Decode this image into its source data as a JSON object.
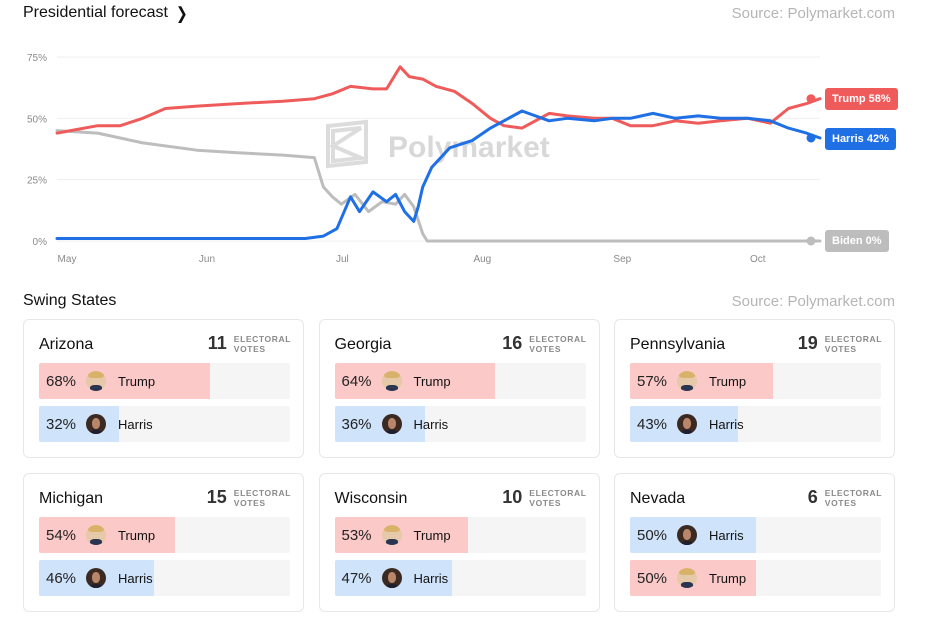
{
  "header": {
    "title": "Presidential forecast",
    "chevron": "chevron-right-icon",
    "source": "Source: Polymarket.com"
  },
  "watermark": "Polymarket",
  "chart_data": {
    "type": "line",
    "title": "Presidential forecast",
    "xlabel": "",
    "ylabel": "",
    "ylim": [
      0,
      75
    ],
    "y_ticks": [
      "0%",
      "25%",
      "50%",
      "75%"
    ],
    "x_ticks": [
      "May",
      "Jun",
      "Jul",
      "Aug",
      "Sep",
      "Oct"
    ],
    "grid": true,
    "legend": "end-labels right",
    "series": [
      {
        "name": "Trump",
        "end_label": "Trump 58%",
        "color": "#ef5b5b",
        "x": [
          "2024-05-01",
          "2024-05-10",
          "2024-05-15",
          "2024-05-20",
          "2024-05-25",
          "2024-06-01",
          "2024-06-10",
          "2024-06-20",
          "2024-06-27",
          "2024-07-01",
          "2024-07-05",
          "2024-07-10",
          "2024-07-13",
          "2024-07-16",
          "2024-07-18",
          "2024-07-21",
          "2024-07-24",
          "2024-07-28",
          "2024-08-01",
          "2024-08-05",
          "2024-08-08",
          "2024-08-12",
          "2024-08-18",
          "2024-08-22",
          "2024-08-28",
          "2024-09-01",
          "2024-09-05",
          "2024-09-10",
          "2024-09-15",
          "2024-09-20",
          "2024-09-25",
          "2024-10-01",
          "2024-10-06",
          "2024-10-10",
          "2024-10-14",
          "2024-10-17"
        ],
        "y": [
          44,
          47,
          47,
          50,
          54,
          55,
          56,
          57,
          58,
          60,
          63,
          62,
          62,
          71,
          67,
          66,
          63,
          61,
          56,
          50,
          47,
          46,
          52,
          51,
          50,
          50,
          47,
          47,
          49,
          48,
          49,
          50,
          48,
          54,
          56,
          58
        ]
      },
      {
        "name": "Harris",
        "end_label": "Harris 42%",
        "color": "#1f6fe5",
        "x": [
          "2024-05-01",
          "2024-06-01",
          "2024-06-25",
          "2024-06-29",
          "2024-07-02",
          "2024-07-05",
          "2024-07-07",
          "2024-07-10",
          "2024-07-13",
          "2024-07-15",
          "2024-07-17",
          "2024-07-19",
          "2024-07-20",
          "2024-07-21",
          "2024-07-23",
          "2024-07-27",
          "2024-08-01",
          "2024-08-05",
          "2024-08-08",
          "2024-08-12",
          "2024-08-18",
          "2024-08-22",
          "2024-08-28",
          "2024-09-01",
          "2024-09-05",
          "2024-09-10",
          "2024-09-15",
          "2024-09-20",
          "2024-09-25",
          "2024-10-01",
          "2024-10-06",
          "2024-10-10",
          "2024-10-14",
          "2024-10-17"
        ],
        "y": [
          1,
          1,
          1,
          2,
          5,
          18,
          12,
          20,
          16,
          19,
          12,
          8,
          14,
          22,
          30,
          38,
          41,
          46,
          49,
          53,
          49,
          50,
          49,
          50,
          50,
          52,
          50,
          51,
          50,
          50,
          49,
          46,
          44,
          42
        ]
      },
      {
        "name": "Biden",
        "end_label": "Biden 0%",
        "color": "#bdbdbd",
        "x": [
          "2024-05-01",
          "2024-05-10",
          "2024-05-20",
          "2024-06-01",
          "2024-06-10",
          "2024-06-20",
          "2024-06-27",
          "2024-06-29",
          "2024-07-01",
          "2024-07-03",
          "2024-07-06",
          "2024-07-09",
          "2024-07-12",
          "2024-07-15",
          "2024-07-17",
          "2024-07-19",
          "2024-07-21",
          "2024-07-22",
          "2024-10-17"
        ],
        "y": [
          45,
          44,
          40,
          37,
          36,
          35,
          34,
          22,
          18,
          15,
          19,
          12,
          16,
          15,
          19,
          14,
          3,
          0,
          0
        ]
      }
    ]
  },
  "swing": {
    "title": "Swing States",
    "source": "Source: Polymarket.com",
    "ev_label_1": "ELECTORAL",
    "ev_label_2": "VOTES",
    "states": [
      {
        "name": "Arizona",
        "ev": "11",
        "rows": [
          {
            "pct": "68%",
            "value": 68,
            "candidate": "Trump",
            "party": "trump"
          },
          {
            "pct": "32%",
            "value": 32,
            "candidate": "Harris",
            "party": "harris"
          }
        ]
      },
      {
        "name": "Georgia",
        "ev": "16",
        "rows": [
          {
            "pct": "64%",
            "value": 64,
            "candidate": "Trump",
            "party": "trump"
          },
          {
            "pct": "36%",
            "value": 36,
            "candidate": "Harris",
            "party": "harris"
          }
        ]
      },
      {
        "name": "Pennsylvania",
        "ev": "19",
        "rows": [
          {
            "pct": "57%",
            "value": 57,
            "candidate": "Trump",
            "party": "trump"
          },
          {
            "pct": "43%",
            "value": 43,
            "candidate": "Harris",
            "party": "harris"
          }
        ]
      },
      {
        "name": "Michigan",
        "ev": "15",
        "rows": [
          {
            "pct": "54%",
            "value": 54,
            "candidate": "Trump",
            "party": "trump"
          },
          {
            "pct": "46%",
            "value": 46,
            "candidate": "Harris",
            "party": "harris"
          }
        ]
      },
      {
        "name": "Wisconsin",
        "ev": "10",
        "rows": [
          {
            "pct": "53%",
            "value": 53,
            "candidate": "Trump",
            "party": "trump"
          },
          {
            "pct": "47%",
            "value": 47,
            "candidate": "Harris",
            "party": "harris"
          }
        ]
      },
      {
        "name": "Nevada",
        "ev": "6",
        "rows": [
          {
            "pct": "50%",
            "value": 50,
            "candidate": "Harris",
            "party": "harris"
          },
          {
            "pct": "50%",
            "value": 50,
            "candidate": "Trump",
            "party": "trump"
          }
        ]
      }
    ]
  },
  "colors": {
    "trump_fill": "#fcc9c9",
    "harris_fill": "#cfe3fb",
    "trump_line": "#ef5b5b",
    "harris_line": "#1f6fe5",
    "biden_line": "#bdbdbd",
    "trump_badge": "#ef5b5b",
    "harris_badge": "#1f6fe5",
    "biden_badge": "#bdbdbd"
  }
}
